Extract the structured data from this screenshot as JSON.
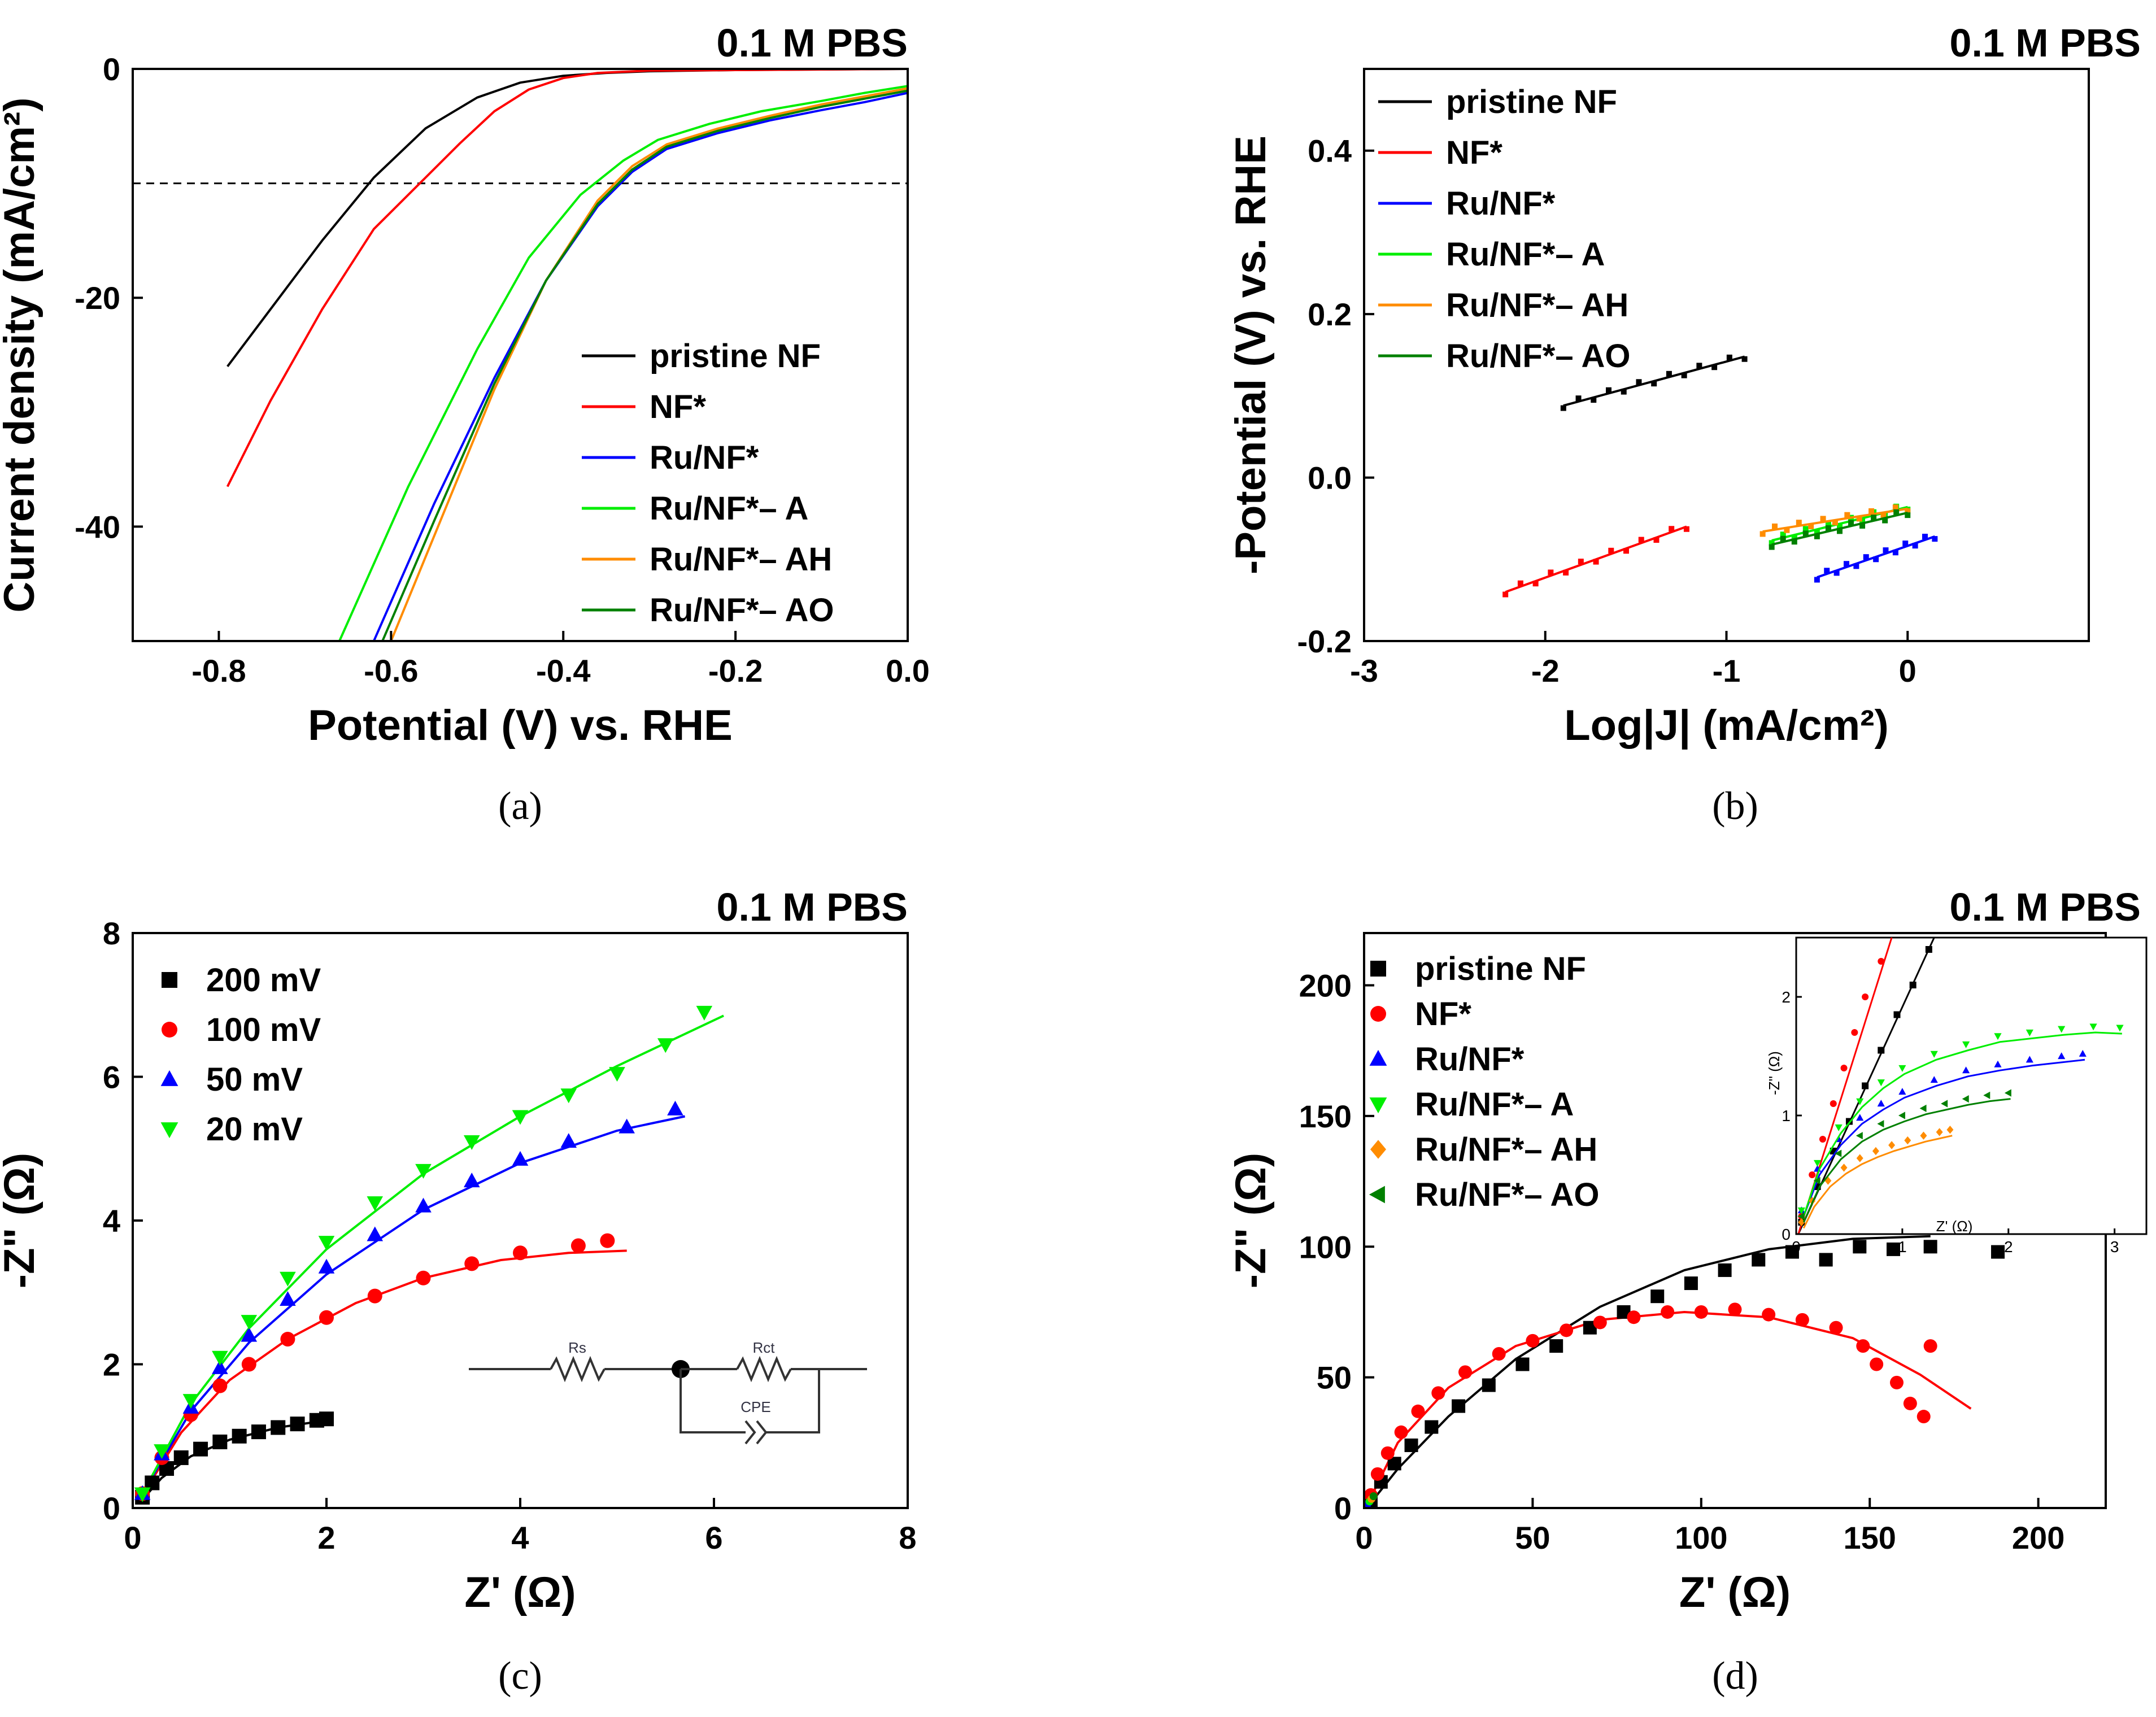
{
  "chart_data": [
    {
      "id": "a",
      "type": "line",
      "caption": "(a)",
      "condition": "0.1 M PBS",
      "xlabel": "Potential (V) vs. RHE",
      "ylabel": "Current density (mA/cm²)",
      "xlim": [
        -0.9,
        0.0
      ],
      "ylim": [
        -50,
        0
      ],
      "xticks": [
        "-0.8",
        "-0.6",
        "-0.4",
        "-0.2",
        "0.0"
      ],
      "yticks": [
        "0",
        "-20",
        "-40"
      ],
      "reference_line": -10,
      "legend_position": "lower-right",
      "series": [
        {
          "name": "pristine NF",
          "color": "#000000",
          "x": [
            -0.79,
            -0.74,
            -0.68,
            -0.62,
            -0.56,
            -0.5,
            -0.45,
            -0.4,
            -0.35,
            -0.3,
            -0.2,
            -0.1,
            0.0
          ],
          "y": [
            -26,
            -21,
            -15,
            -9.5,
            -5.2,
            -2.5,
            -1.2,
            -0.6,
            -0.35,
            -0.2,
            -0.1,
            -0.05,
            0
          ]
        },
        {
          "name": "NF*",
          "color": "#ff0000",
          "x": [
            -0.79,
            -0.74,
            -0.68,
            -0.62,
            -0.56,
            -0.52,
            -0.48,
            -0.44,
            -0.4,
            -0.36,
            -0.3,
            -0.2,
            -0.1,
            0.0
          ],
          "y": [
            -36.5,
            -29,
            -21,
            -14,
            -9.5,
            -6.5,
            -3.7,
            -1.8,
            -0.8,
            -0.35,
            -0.15,
            -0.1,
            -0.05,
            0
          ]
        },
        {
          "name": "Ru/NF*",
          "color": "#0000ff",
          "x": [
            -0.62,
            -0.55,
            -0.48,
            -0.42,
            -0.36,
            -0.32,
            -0.28,
            -0.22,
            -0.16,
            -0.1,
            -0.05,
            0.0
          ],
          "y": [
            -50,
            -38,
            -27,
            -18.5,
            -12,
            -9,
            -7,
            -5.6,
            -4.5,
            -3.6,
            -2.9,
            -2.1
          ]
        },
        {
          "name": "Ru/NF*– A",
          "color": "#00ee00",
          "x": [
            -0.66,
            -0.58,
            -0.5,
            -0.44,
            -0.38,
            -0.33,
            -0.29,
            -0.23,
            -0.17,
            -0.1,
            -0.05,
            0.0
          ],
          "y": [
            -50,
            -36.5,
            -24.5,
            -16.5,
            -11,
            -8,
            -6.2,
            -4.8,
            -3.7,
            -2.8,
            -2.1,
            -1.5
          ]
        },
        {
          "name": "Ru/NF*– AH",
          "color": "#ff8c00",
          "x": [
            -0.6,
            -0.54,
            -0.48,
            -0.42,
            -0.36,
            -0.32,
            -0.28,
            -0.22,
            -0.16,
            -0.1,
            -0.05,
            0.0
          ],
          "y": [
            -50,
            -39,
            -28,
            -18.5,
            -11.5,
            -8.5,
            -6.6,
            -5.2,
            -4.1,
            -3.1,
            -2.4,
            -1.7
          ]
        },
        {
          "name": "Ru/NF*– AO",
          "color": "#008000",
          "x": [
            -0.61,
            -0.55,
            -0.48,
            -0.42,
            -0.36,
            -0.32,
            -0.28,
            -0.22,
            -0.16,
            -0.1,
            -0.05,
            0.0
          ],
          "y": [
            -50,
            -39.5,
            -27.5,
            -18.5,
            -11.8,
            -8.8,
            -6.8,
            -5.4,
            -4.3,
            -3.3,
            -2.6,
            -1.9
          ]
        }
      ]
    },
    {
      "id": "b",
      "type": "line",
      "caption": "(b)",
      "condition": "0.1 M PBS",
      "xlabel": "Log|J| (mA/cm²)",
      "ylabel": "-Potential (V) vs. RHE",
      "xlim": [
        -3.0,
        1.0
      ],
      "ylim": [
        -0.2,
        0.5
      ],
      "xticks": [
        "-3",
        "-2",
        "-1",
        "0"
      ],
      "yticks": [
        "-0.2",
        "0.0",
        "0.2",
        "0.4"
      ],
      "legend_position": "upper-left",
      "series": [
        {
          "name": "pristine NF",
          "color": "#000000",
          "x": [
            -1.9,
            -0.9
          ],
          "y": [
            0.088,
            0.148
          ]
        },
        {
          "name": "NF*",
          "color": "#ff0000",
          "x": [
            -2.22,
            -1.22
          ],
          "y": [
            -0.14,
            -0.06
          ]
        },
        {
          "name": "Ru/NF*",
          "color": "#0000ff",
          "x": [
            -0.5,
            0.15
          ],
          "y": [
            -0.122,
            -0.072
          ]
        },
        {
          "name": "Ru/NF*– A",
          "color": "#00ee00",
          "x": [
            -0.75,
            0.0
          ],
          "y": [
            -0.077,
            -0.036
          ]
        },
        {
          "name": "Ru/NF*– AH",
          "color": "#ff8c00",
          "x": [
            -0.8,
            0.0
          ],
          "y": [
            -0.066,
            -0.038
          ]
        },
        {
          "name": "Ru/NF*– AO",
          "color": "#008000",
          "x": [
            -0.75,
            0.0
          ],
          "y": [
            -0.082,
            -0.043
          ]
        }
      ]
    },
    {
      "id": "c",
      "type": "scatter",
      "caption": "(c)",
      "condition": "0.1 M PBS",
      "xlabel": "Z' (Ω)",
      "ylabel": "-Z\" (Ω)",
      "xlim": [
        0,
        8
      ],
      "ylim": [
        0,
        8
      ],
      "xticks": [
        "0",
        "2",
        "4",
        "6",
        "8"
      ],
      "yticks": [
        "0",
        "2",
        "4",
        "6",
        "8"
      ],
      "legend_position": "upper-left",
      "inset_circuit": {
        "labels": [
          "Rs",
          "Rct",
          "CPE"
        ]
      },
      "series": [
        {
          "name": "200 mV",
          "color": "#000000",
          "marker": "square",
          "x": [
            0.1,
            0.2,
            0.35,
            0.5,
            0.7,
            0.9,
            1.1,
            1.3,
            1.5,
            1.7,
            1.9,
            2.0
          ],
          "y": [
            0.15,
            0.35,
            0.55,
            0.7,
            0.82,
            0.92,
            1.0,
            1.06,
            1.12,
            1.17,
            1.22,
            1.24
          ]
        },
        {
          "name": "100 mV",
          "color": "#ff0000",
          "marker": "circle",
          "x": [
            0.1,
            0.3,
            0.6,
            0.9,
            1.2,
            1.6,
            2.0,
            2.5,
            3.0,
            3.5,
            4.0,
            4.6,
            4.9
          ],
          "y": [
            0.2,
            0.7,
            1.3,
            1.7,
            2.0,
            2.35,
            2.65,
            2.95,
            3.2,
            3.4,
            3.55,
            3.65,
            3.72
          ]
        },
        {
          "name": "50 mV",
          "color": "#0000ff",
          "marker": "triangle-up",
          "x": [
            0.1,
            0.3,
            0.6,
            0.9,
            1.2,
            1.6,
            2.0,
            2.5,
            3.0,
            3.5,
            4.0,
            4.5,
            5.1,
            5.6
          ],
          "y": [
            0.2,
            0.75,
            1.4,
            1.95,
            2.4,
            2.9,
            3.35,
            3.8,
            4.2,
            4.55,
            4.85,
            5.1,
            5.3,
            5.55
          ]
        },
        {
          "name": "20 mV",
          "color": "#00ee00",
          "marker": "triangle-down",
          "x": [
            0.1,
            0.3,
            0.6,
            0.9,
            1.2,
            1.6,
            2.0,
            2.5,
            3.0,
            3.5,
            4.0,
            4.5,
            5.0,
            5.5,
            5.9
          ],
          "y": [
            0.2,
            0.8,
            1.5,
            2.1,
            2.6,
            3.2,
            3.7,
            4.25,
            4.7,
            5.1,
            5.45,
            5.75,
            6.05,
            6.45,
            6.9
          ]
        }
      ],
      "fits": [
        {
          "name": "200 mV",
          "color": "#000000",
          "x": [
            0.1,
            0.3,
            0.6,
            1.0,
            1.5,
            2.0
          ],
          "y": [
            0.12,
            0.42,
            0.72,
            0.95,
            1.12,
            1.22
          ]
        },
        {
          "name": "100 mV",
          "color": "#ff0000",
          "x": [
            0.1,
            0.5,
            1.0,
            1.6,
            2.3,
            3.0,
            3.8,
            4.5,
            5.1
          ],
          "y": [
            0.18,
            1.05,
            1.78,
            2.35,
            2.85,
            3.2,
            3.45,
            3.55,
            3.58
          ]
        },
        {
          "name": "50 mV",
          "color": "#0000ff",
          "x": [
            0.1,
            0.6,
            1.2,
            2.0,
            3.0,
            4.0,
            5.0,
            5.7
          ],
          "y": [
            0.2,
            1.35,
            2.3,
            3.25,
            4.15,
            4.8,
            5.25,
            5.45
          ]
        },
        {
          "name": "20 mV",
          "color": "#00ee00",
          "x": [
            0.1,
            0.6,
            1.2,
            2.0,
            3.0,
            4.0,
            5.0,
            6.1
          ],
          "y": [
            0.2,
            1.45,
            2.5,
            3.6,
            4.65,
            5.45,
            6.15,
            6.85
          ]
        }
      ]
    },
    {
      "id": "d",
      "type": "scatter",
      "caption": "(d)",
      "condition": "0.1 M PBS",
      "xlabel": "Z' (Ω)",
      "ylabel": "-Z\" (Ω)",
      "xlim": [
        0,
        220
      ],
      "ylim": [
        0,
        220
      ],
      "xticks": [
        "0",
        "50",
        "100",
        "150",
        "200"
      ],
      "yticks": [
        "0",
        "50",
        "100",
        "150",
        "200"
      ],
      "legend_position": "upper-left",
      "series": [
        {
          "name": "pristine NF",
          "color": "#000000",
          "marker": "square",
          "x": [
            2,
            5,
            9,
            14,
            20,
            28,
            37,
            47,
            57,
            67,
            77,
            87,
            97,
            107,
            117,
            127,
            137,
            147,
            157,
            168,
            188
          ],
          "y": [
            3,
            10,
            17,
            24,
            31,
            39,
            47,
            55,
            62,
            69,
            75,
            81,
            86,
            91,
            95,
            98,
            95,
            100,
            99,
            100,
            98
          ]
        },
        {
          "name": "NF*",
          "color": "#ff0000",
          "marker": "circle",
          "x": [
            2,
            4,
            7,
            11,
            16,
            22,
            30,
            40,
            50,
            60,
            70,
            80,
            90,
            100,
            110,
            120,
            130,
            140,
            148,
            152,
            158,
            162,
            166,
            168
          ],
          "y": [
            5,
            13,
            21,
            29,
            37,
            44,
            52,
            59,
            64,
            68,
            71,
            73,
            75,
            75,
            76,
            74,
            72,
            69,
            62,
            55,
            48,
            40,
            35,
            62
          ]
        }
      ],
      "fits": [
        {
          "name": "pristine NF",
          "color": "#000000",
          "x": [
            2,
            10,
            25,
            45,
            70,
            95,
            120,
            145,
            168
          ],
          "y": [
            2,
            15,
            35,
            57,
            77,
            91,
            99,
            103,
            104
          ]
        },
        {
          "name": "NF*",
          "color": "#ff0000",
          "x": [
            2,
            10,
            25,
            45,
            70,
            95,
            120,
            145,
            165,
            180
          ],
          "y": [
            4,
            25,
            46,
            62,
            72,
            75,
            73,
            65,
            51,
            38
          ]
        }
      ],
      "inset": {
        "xlabel": "Z' (Ω)",
        "ylabel": "-Z\" (Ω)",
        "xlim": [
          0,
          3.3
        ],
        "ylim": [
          0,
          2.5
        ],
        "xticks": [
          "0",
          "1",
          "2",
          "3"
        ],
        "yticks": [
          "0",
          "1",
          "2"
        ],
        "series": [
          {
            "name": "pristine NF",
            "color": "#000000",
            "x": [
              0.05,
              0.2,
              0.35,
              0.5,
              0.65,
              0.8,
              0.95,
              1.1,
              1.25
            ],
            "y": [
              0.1,
              0.4,
              0.7,
              0.95,
              1.25,
              1.55,
              1.85,
              2.1,
              2.4
            ]
          },
          {
            "name": "NF*",
            "color": "#ff0000",
            "x": [
              0.05,
              0.15,
              0.25,
              0.35,
              0.45,
              0.55,
              0.65,
              0.8
            ],
            "y": [
              0.15,
              0.5,
              0.8,
              1.1,
              1.4,
              1.7,
              2.0,
              2.3
            ]
          },
          {
            "name": "Ru/NF*",
            "color": "#0000ff",
            "x": [
              0.05,
              0.2,
              0.4,
              0.6,
              0.8,
              1.0,
              1.3,
              1.6,
              1.9,
              2.2,
              2.5,
              2.7
            ],
            "y": [
              0.2,
              0.55,
              0.8,
              0.98,
              1.1,
              1.2,
              1.3,
              1.38,
              1.43,
              1.47,
              1.5,
              1.52
            ]
          },
          {
            "name": "Ru/NF*– A",
            "color": "#00ee00",
            "x": [
              0.05,
              0.2,
              0.4,
              0.6,
              0.8,
              1.0,
              1.3,
              1.6,
              1.9,
              2.2,
              2.5,
              2.8,
              3.05
            ],
            "y": [
              0.2,
              0.6,
              0.9,
              1.12,
              1.28,
              1.4,
              1.52,
              1.6,
              1.67,
              1.7,
              1.73,
              1.75,
              1.74
            ]
          },
          {
            "name": "Ru/NF*– AH",
            "color": "#ff8c00",
            "x": [
              0.05,
              0.15,
              0.3,
              0.45,
              0.6,
              0.75,
              0.9,
              1.05,
              1.2,
              1.35,
              1.45
            ],
            "y": [
              0.1,
              0.28,
              0.45,
              0.56,
              0.64,
              0.7,
              0.75,
              0.79,
              0.83,
              0.86,
              0.88
            ]
          },
          {
            "name": "Ru/NF*– AO",
            "color": "#008000",
            "x": [
              0.05,
              0.2,
              0.4,
              0.6,
              0.8,
              1.0,
              1.2,
              1.4,
              1.6,
              1.8,
              2.0
            ],
            "y": [
              0.15,
              0.45,
              0.68,
              0.83,
              0.93,
              1.0,
              1.06,
              1.1,
              1.14,
              1.17,
              1.19
            ]
          }
        ]
      },
      "legend_series": [
        {
          "name": "pristine NF",
          "color": "#000000",
          "marker": "square"
        },
        {
          "name": "NF*",
          "color": "#ff0000",
          "marker": "circle"
        },
        {
          "name": "Ru/NF*",
          "color": "#0000ff",
          "marker": "triangle-up"
        },
        {
          "name": "Ru/NF*– A",
          "color": "#00ee00",
          "marker": "triangle-down"
        },
        {
          "name": "Ru/NF*– AH",
          "color": "#ff8c00",
          "marker": "diamond"
        },
        {
          "name": "Ru/NF*– AO",
          "color": "#008000",
          "marker": "triangle-left"
        }
      ]
    }
  ]
}
